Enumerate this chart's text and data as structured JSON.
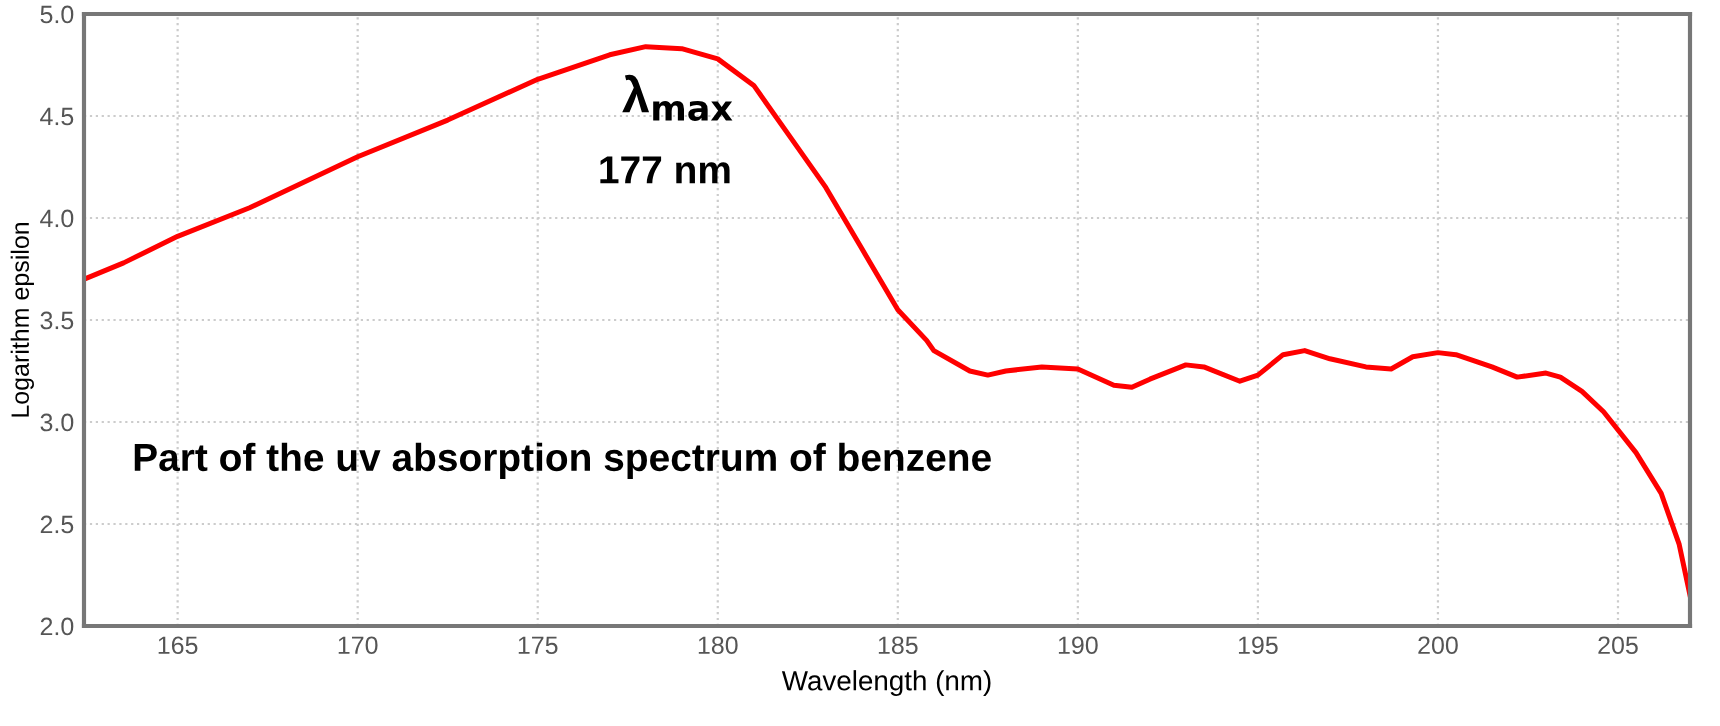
{
  "chart_data": {
    "type": "line",
    "xlabel": "Wavelength (nm)",
    "ylabel": "Logarithm epsilon",
    "annotations": [
      "λ$_{max}$",
      "177 nm",
      "Part of the uv absorption spectrum of benzene"
    ],
    "series": [
      {
        "color": "#ff0000",
        "x": [
          162.4,
          163.5,
          165,
          167,
          170,
          172.5,
          175,
          176,
          177,
          178,
          179,
          180,
          181,
          182,
          183,
          184,
          185,
          185.8,
          186,
          187,
          187.5,
          188,
          189,
          190,
          191,
          191.5,
          192,
          193,
          193.5,
          194.5,
          195,
          195.7,
          196.3,
          197,
          198,
          198.7,
          199.3,
          200,
          200.5,
          201.5,
          202.2,
          203,
          203.4,
          204,
          204.6,
          205.5,
          206.2,
          206.7,
          207
        ],
        "values": [
          3.7,
          3.78,
          3.91,
          4.05,
          4.3,
          4.48,
          4.68,
          4.74,
          4.8,
          4.84,
          4.83,
          4.78,
          4.65,
          4.4,
          4.15,
          3.85,
          3.55,
          3.4,
          3.35,
          3.25,
          3.23,
          3.25,
          3.27,
          3.26,
          3.18,
          3.17,
          3.21,
          3.28,
          3.27,
          3.2,
          3.23,
          3.33,
          3.35,
          3.31,
          3.27,
          3.26,
          3.32,
          3.34,
          3.33,
          3.27,
          3.22,
          3.24,
          3.22,
          3.15,
          3.05,
          2.85,
          2.65,
          2.4,
          2.15
        ]
      }
    ],
    "xlim": [
      162.4,
      207
    ],
    "ylim": [
      2,
      5
    ],
    "xticks": [
      165,
      170,
      175,
      180,
      185,
      190,
      195,
      200,
      205
    ],
    "yticks": [
      {
        "value": 2,
        "label": "2.0"
      },
      {
        "value": 2.5,
        "label": "2.5"
      },
      {
        "value": 3,
        "label": "3.0"
      },
      {
        "value": 3.5,
        "label": "3.5"
      },
      {
        "value": 4,
        "label": "4.0"
      },
      {
        "value": 4.5,
        "label": "4.5"
      },
      {
        "value": 5,
        "label": "5.0"
      }
    ],
    "grid": true,
    "marker": "none",
    "line_style": "solid"
  }
}
